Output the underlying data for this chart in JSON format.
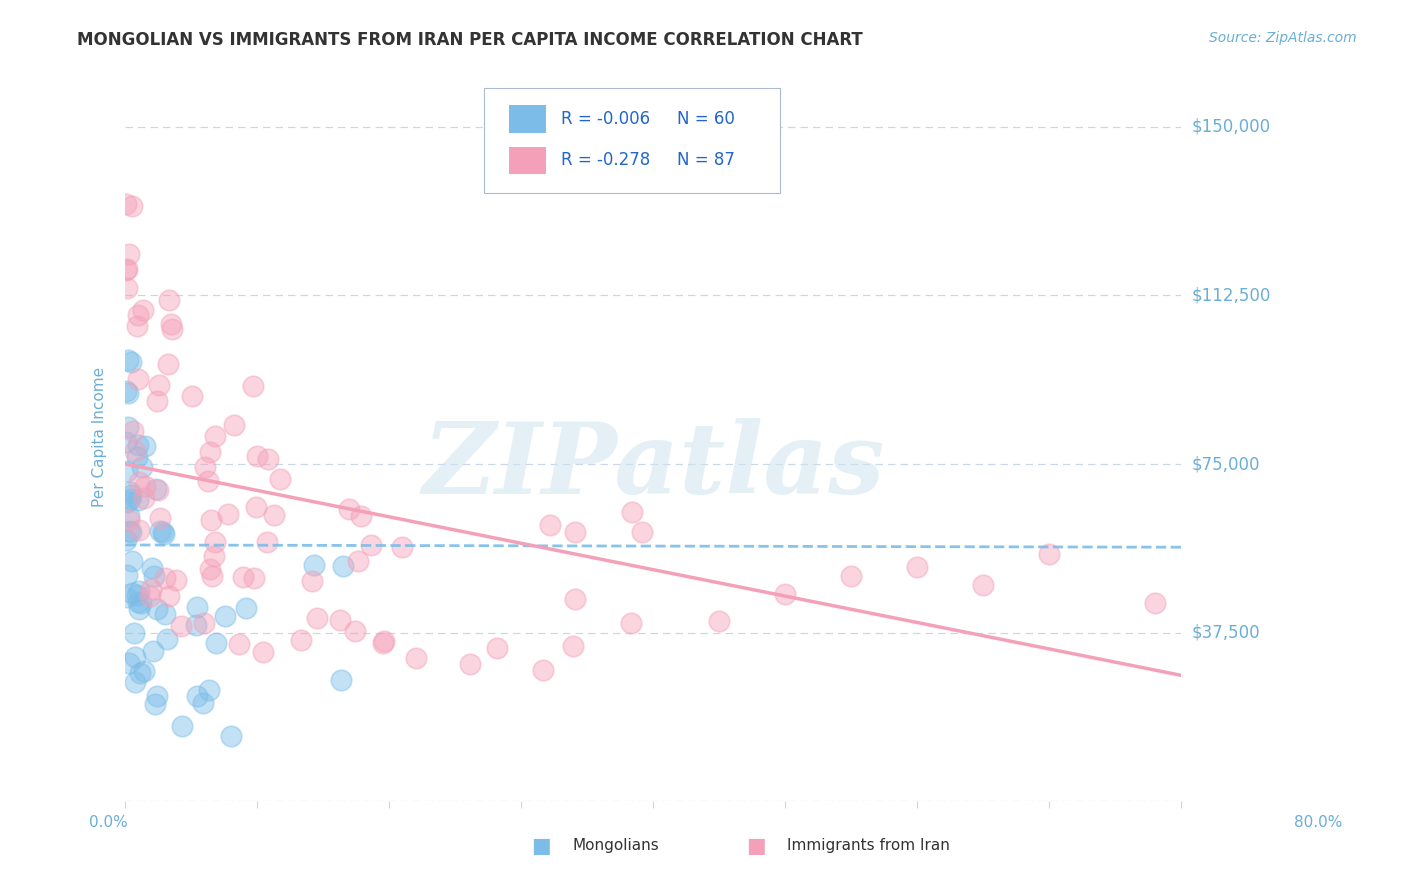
{
  "title": "MONGOLIAN VS IMMIGRANTS FROM IRAN PER CAPITA INCOME CORRELATION CHART",
  "source_text": "Source: ZipAtlas.com",
  "ylabel": "Per Capita Income",
  "yticks": [
    0,
    37500,
    75000,
    112500,
    150000
  ],
  "ytick_labels": [
    "",
    "$37,500",
    "$75,000",
    "$112,500",
    "$150,000"
  ],
  "xmin": 0.0,
  "xmax": 80.0,
  "ymin": 0,
  "ymax": 162000,
  "mongolian_color": "#7bbde8",
  "iran_color": "#f4a0b8",
  "mongolian_R": -0.006,
  "mongolian_N": 60,
  "iran_R": -0.278,
  "iran_N": 87,
  "legend_label_1": "Mongolians",
  "legend_label_2": "Immigrants from Iran",
  "watermark": "ZIPatlas",
  "background_color": "#ffffff",
  "grid_color": "#c8d8e8",
  "axis_color": "#6baed6",
  "title_color": "#333333",
  "source_color": "#6baed6",
  "mong_trend_x0": 0,
  "mong_trend_x1": 80,
  "mong_trend_y0": 57000,
  "mong_trend_y1": 56500,
  "iran_trend_x0": 0,
  "iran_trend_x1": 80,
  "iran_trend_y0": 75000,
  "iran_trend_y1": 28000
}
